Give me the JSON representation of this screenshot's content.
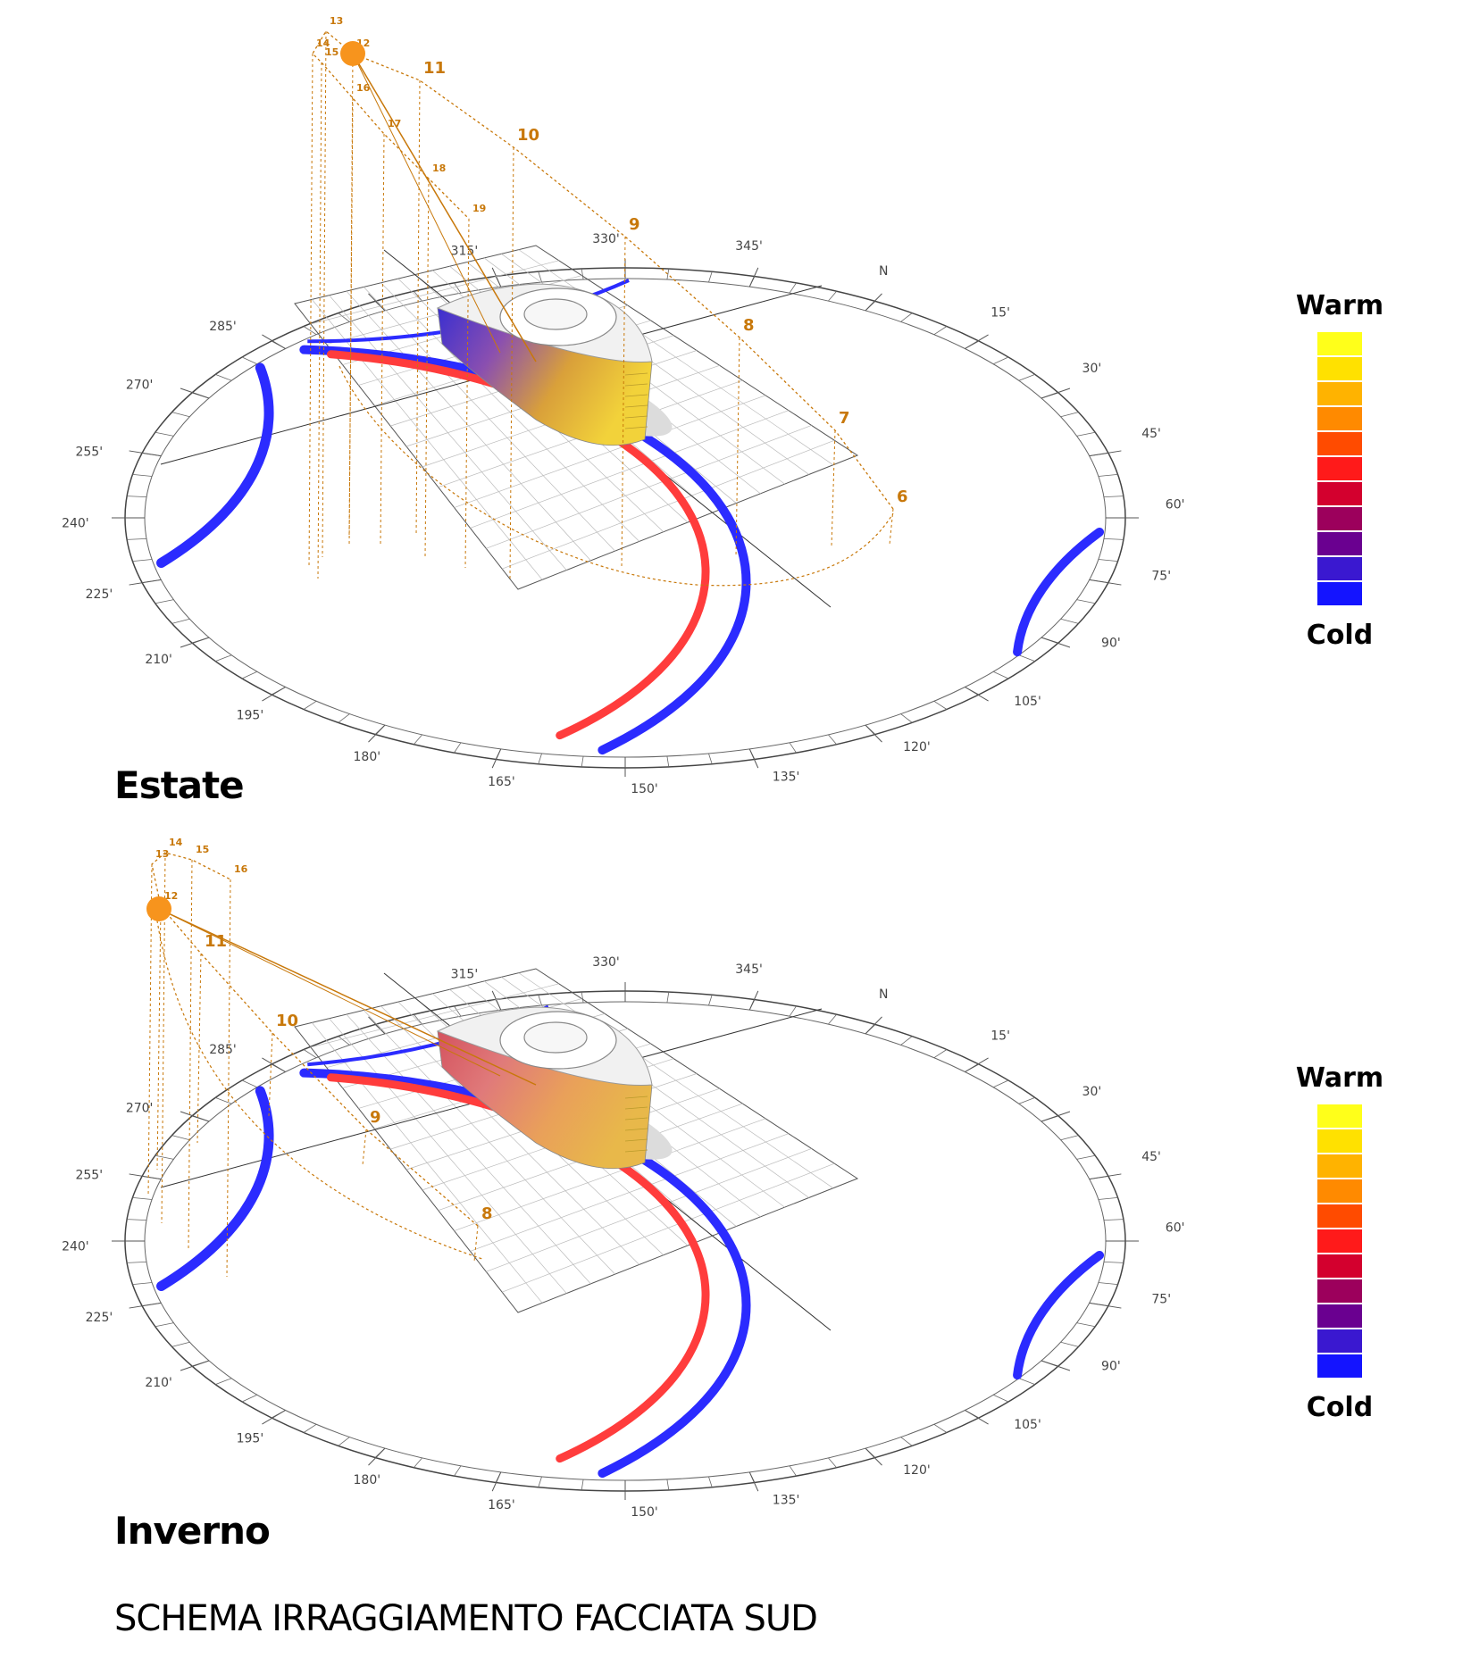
{
  "diagrams": [
    {
      "id": "summer",
      "label": "Estate",
      "sun_hours": [
        "6",
        "7",
        "8",
        "9",
        "10",
        "11",
        "12",
        "13",
        "14",
        "15",
        "16",
        "17",
        "18",
        "19"
      ],
      "building_gradient": [
        "#3a2fd0",
        "#8a4fb0",
        "#d9a03a",
        "#f2d23a"
      ]
    },
    {
      "id": "winter",
      "label": "Inverno",
      "sun_hours": [
        "8",
        "9",
        "10",
        "11",
        "12",
        "13",
        "14",
        "15",
        "16"
      ],
      "building_gradient": [
        "#d4535f",
        "#e07a7a",
        "#e9a05a",
        "#e8b84a"
      ]
    }
  ],
  "compass_labels": [
    "N",
    "15'",
    "30'",
    "45'",
    "60'",
    "75'",
    "90'",
    "105'",
    "120'",
    "135'",
    "150'",
    "165'",
    "180'",
    "195'",
    "210'",
    "225'",
    "240'",
    "255'",
    "270'",
    "285'",
    "315'",
    "330'",
    "345'"
  ],
  "legend": {
    "warm_label": "Warm",
    "cold_label": "Cold",
    "colors": [
      "#ffff1a",
      "#ffe100",
      "#ffb300",
      "#ff8a00",
      "#ff4b00",
      "#ff1a1a",
      "#d3002e",
      "#9c005c",
      "#6a0090",
      "#3a18d0",
      "#1414ff"
    ]
  },
  "colors": {
    "sun": "#f7941d",
    "sun_path": "#c8780a",
    "hour_label": "#c8780a",
    "warm_arc": "#ff3c3c",
    "cold_arc": "#2b2bff"
  },
  "title": "SCHEMA IRRAGGIAMENTO FACCIATA SUD"
}
